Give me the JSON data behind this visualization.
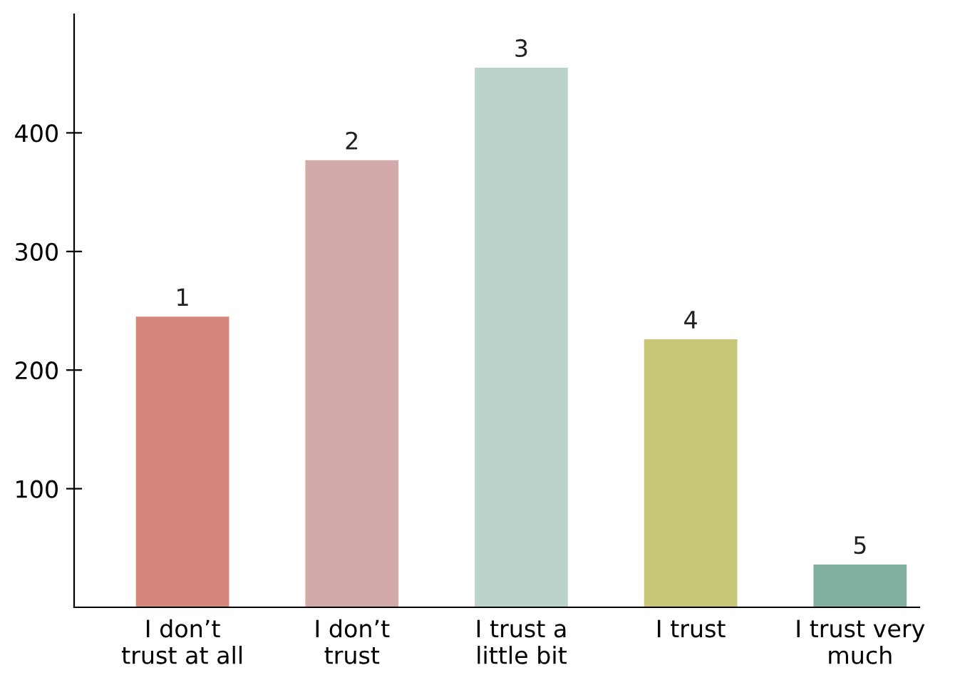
{
  "chart_data": {
    "type": "bar",
    "categories": [
      "I don’t\ntrust at all",
      "I don’t\ntrust",
      "I trust a\nlittle bit",
      "I trust",
      "I trust very\nmuch"
    ],
    "values": [
      245,
      377,
      455,
      226,
      36
    ],
    "colors": [
      "#d4867a",
      "#d3a9a9",
      "#bcd3cb",
      "#c8c677",
      "#80ae9f"
    ],
    "annotations": [
      {
        "text": "1",
        "x": "I don’t\ntrust at all",
        "y": 245
      },
      {
        "text": "2",
        "x": "I don’t\ntrust",
        "y": 377
      },
      {
        "text": "3",
        "x": "I trust a\nlittle bit",
        "y": 455
      },
      {
        "text": "4",
        "x": "I trust",
        "y": 226
      },
      {
        "text": "5",
        "x": "I trust very\nmuch",
        "y": 36
      }
    ],
    "ylim": [
      0,
      500
    ],
    "yticks": [
      100,
      200,
      300,
      400
    ],
    "grid": false,
    "legend": false
  }
}
